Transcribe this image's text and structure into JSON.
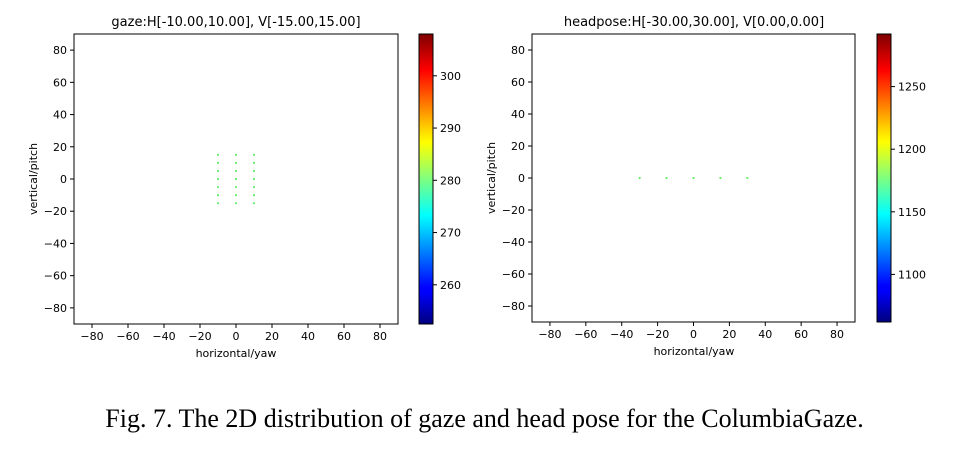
{
  "caption": "Fig. 7.   The 2D distribution of gaze and head pose for the ColumbiaGaze.",
  "chart_data": [
    {
      "type": "scatter",
      "title": "gaze:H[-10.00,10.00], V[-15.00,15.00]",
      "xlabel": "horizontal/yaw",
      "ylabel": "vertical/pitch",
      "xlim": [
        -90,
        90
      ],
      "ylim": [
        -90,
        90
      ],
      "xticks": [
        -80,
        -60,
        -40,
        -20,
        0,
        20,
        40,
        60,
        80
      ],
      "yticks": [
        -80,
        -60,
        -40,
        -20,
        0,
        20,
        40,
        60,
        80
      ],
      "xtick_labels": [
        "−80",
        "−60",
        "−40",
        "−20",
        "0",
        "20",
        "40",
        "60",
        "80"
      ],
      "ytick_labels": [
        "−80",
        "−60",
        "−40",
        "−20",
        "0",
        "20",
        "40",
        "60",
        "80"
      ],
      "grid": false,
      "point_color": "#66ee66",
      "points_x": [
        -10,
        -10,
        -10,
        -10,
        -10,
        -10,
        -10,
        0,
        0,
        0,
        0,
        0,
        0,
        0,
        10,
        10,
        10,
        10,
        10,
        10,
        10
      ],
      "points_y": [
        15,
        10,
        5,
        0,
        -5,
        -10,
        -15,
        15,
        10,
        5,
        0,
        -5,
        -10,
        -15,
        15,
        10,
        5,
        0,
        -5,
        -10,
        -15
      ],
      "colorbar": {
        "colormap": "jet",
        "range": [
          252.5,
          308
        ],
        "ticks": [
          260,
          270,
          280,
          290,
          300
        ],
        "tick_labels": [
          "260",
          "270",
          "280",
          "290",
          "300"
        ]
      }
    },
    {
      "type": "scatter",
      "title": "headpose:H[-30.00,30.00], V[0.00,0.00]",
      "xlabel": "horizontal/yaw",
      "ylabel": "vertical/pitch",
      "xlim": [
        -90,
        90
      ],
      "ylim": [
        -90,
        90
      ],
      "xticks": [
        -80,
        -60,
        -40,
        -20,
        0,
        20,
        40,
        60,
        80
      ],
      "yticks": [
        -80,
        -60,
        -40,
        -20,
        0,
        20,
        40,
        60,
        80
      ],
      "xtick_labels": [
        "−80",
        "−60",
        "−40",
        "−20",
        "0",
        "20",
        "40",
        "60",
        "80"
      ],
      "ytick_labels": [
        "−80",
        "−60",
        "−40",
        "−20",
        "0",
        "20",
        "40",
        "60",
        "80"
      ],
      "grid": false,
      "point_color": "#66ee66",
      "points_x": [
        -30,
        -15,
        0,
        15,
        30
      ],
      "points_y": [
        0,
        0,
        0,
        0,
        0
      ],
      "colorbar": {
        "colormap": "jet",
        "range": [
          1062,
          1292
        ],
        "ticks": [
          1100,
          1150,
          1200,
          1250
        ],
        "tick_labels": [
          "1100",
          "1150",
          "1200",
          "1250"
        ]
      }
    }
  ]
}
